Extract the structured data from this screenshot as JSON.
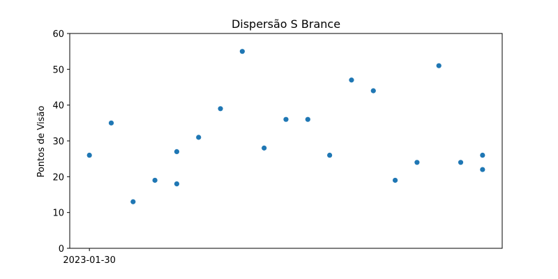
{
  "chart_data": {
    "type": "scatter",
    "title": "Dispersão S Brance",
    "xlabel": "",
    "ylabel": "Pontos de Visão",
    "x_tick_labels": [
      "2023-01-30"
    ],
    "y_ticks": [
      0,
      10,
      20,
      30,
      40,
      50,
      60
    ],
    "ylim": [
      0,
      60
    ],
    "x": [
      "2023-01-30",
      "2023-01-31",
      "2023-02-01",
      "2023-02-02",
      "2023-02-03",
      "2023-02-03",
      "2023-02-04",
      "2023-02-05",
      "2023-02-06",
      "2023-02-07",
      "2023-02-08",
      "2023-02-09",
      "2023-02-10",
      "2023-02-11",
      "2023-02-12",
      "2023-02-13",
      "2023-02-14",
      "2023-02-15",
      "2023-02-16",
      "2023-02-17",
      "2023-02-17"
    ],
    "y": [
      26,
      35,
      13,
      19,
      27,
      18,
      31,
      39,
      55,
      28,
      36,
      36,
      26,
      47,
      44,
      19,
      24,
      51,
      24,
      26,
      22
    ],
    "marker_color": "#1f77b4",
    "grid": false
  }
}
